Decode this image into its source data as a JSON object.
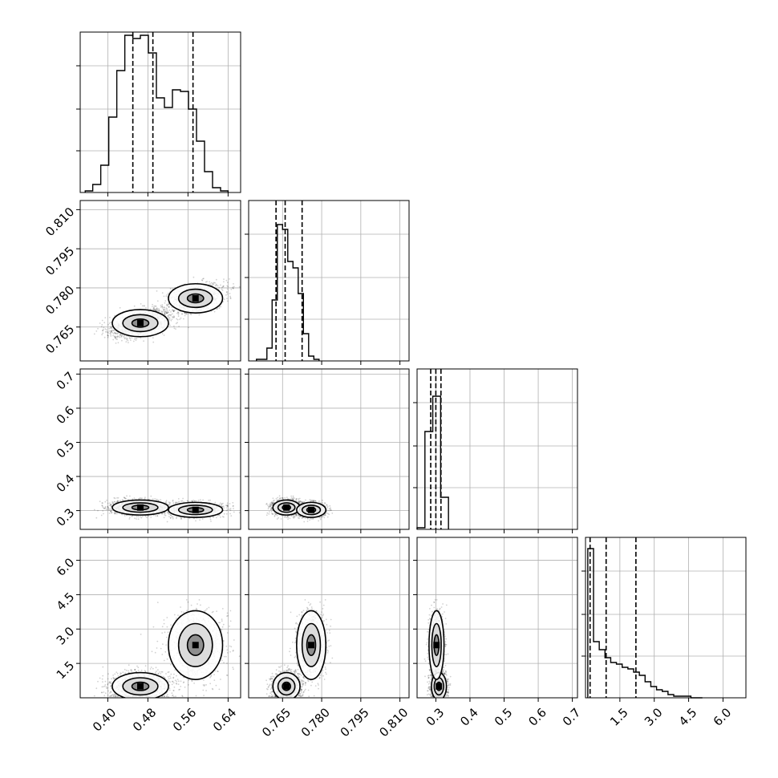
{
  "chart_data": {
    "type": "corner",
    "grid": true,
    "parameters": [
      {
        "index": 0,
        "range": [
          0.345,
          0.665
        ],
        "ticks": [
          0.4,
          0.48,
          0.56,
          0.64
        ],
        "tick_labels": [
          "0.40",
          "0.48",
          "0.56",
          "0.64"
        ],
        "quantiles": [
          0.45,
          0.49,
          0.57
        ],
        "histogram": {
          "edges": [
            0.355,
            0.37,
            0.386,
            0.402,
            0.418,
            0.434,
            0.45,
            0.465,
            0.481,
            0.497,
            0.513,
            0.529,
            0.545,
            0.561,
            0.577,
            0.593,
            0.609,
            0.625,
            0.64
          ],
          "density": [
            0.01,
            0.05,
            0.17,
            0.47,
            0.76,
            0.98,
            0.96,
            0.98,
            0.87,
            0.59,
            0.53,
            0.64,
            0.63,
            0.52,
            0.32,
            0.13,
            0.03,
            0.01
          ]
        }
      },
      {
        "index": 1,
        "range": [
          0.752,
          0.8135
        ],
        "ticks": [
          0.765,
          0.78,
          0.795,
          0.81
        ],
        "tick_labels": [
          "0.765",
          "0.780",
          "0.795",
          "0.810"
        ],
        "quantiles": [
          0.7625,
          0.766,
          0.7725
        ],
        "histogram": {
          "edges": [
            0.755,
            0.757,
            0.759,
            0.761,
            0.763,
            0.765,
            0.767,
            0.769,
            0.771,
            0.773,
            0.775,
            0.777,
            0.779
          ],
          "density": [
            0.01,
            0.01,
            0.08,
            0.38,
            0.85,
            0.82,
            0.62,
            0.58,
            0.42,
            0.17,
            0.03,
            0.01
          ]
        }
      },
      {
        "index": 2,
        "range": [
          0.245,
          0.715
        ],
        "ticks": [
          0.3,
          0.4,
          0.5,
          0.6,
          0.7
        ],
        "tick_labels": [
          "0.3",
          "0.4",
          "0.5",
          "0.6",
          "0.7"
        ],
        "quantiles": [
          0.285,
          0.3,
          0.315
        ],
        "histogram": {
          "edges": [
            0.245,
            0.268,
            0.291,
            0.314,
            0.337
          ],
          "density": [
            0.01,
            0.61,
            0.83,
            0.2
          ]
        }
      },
      {
        "index": 3,
        "range": [
          0.0,
          7.0
        ],
        "ticks": [
          1.5,
          3.0,
          4.5,
          6.0
        ],
        "tick_labels": [
          "1.5",
          "3.0",
          "4.5",
          "6.0"
        ],
        "quantiles": [
          0.2,
          0.9,
          2.2
        ],
        "histogram": {
          "edges": [
            0.1,
            0.35,
            0.6,
            0.85,
            1.1,
            1.35,
            1.6,
            1.85,
            2.1,
            2.35,
            2.6,
            2.85,
            3.1,
            3.35,
            3.6,
            3.85,
            4.1,
            4.35,
            4.6,
            4.85,
            5.1
          ],
          "density": [
            0.93,
            0.35,
            0.3,
            0.25,
            0.22,
            0.21,
            0.19,
            0.18,
            0.16,
            0.14,
            0.1,
            0.07,
            0.05,
            0.04,
            0.02,
            0.01,
            0.01,
            0.01,
            0.0,
            0.0
          ]
        }
      }
    ],
    "distribution_components": [
      {
        "weight": 0.6,
        "mean": [
          0.465,
          0.7665,
          0.309,
          0.5
        ],
        "sd": [
          0.028,
          0.0026,
          0.011,
          0.3
        ],
        "rho_01": 0.45
      },
      {
        "weight": 0.4,
        "mean": [
          0.575,
          0.776,
          0.302,
          2.3
        ],
        "sd": [
          0.027,
          0.0028,
          0.011,
          0.75
        ],
        "rho_01": 0.3
      }
    ]
  }
}
